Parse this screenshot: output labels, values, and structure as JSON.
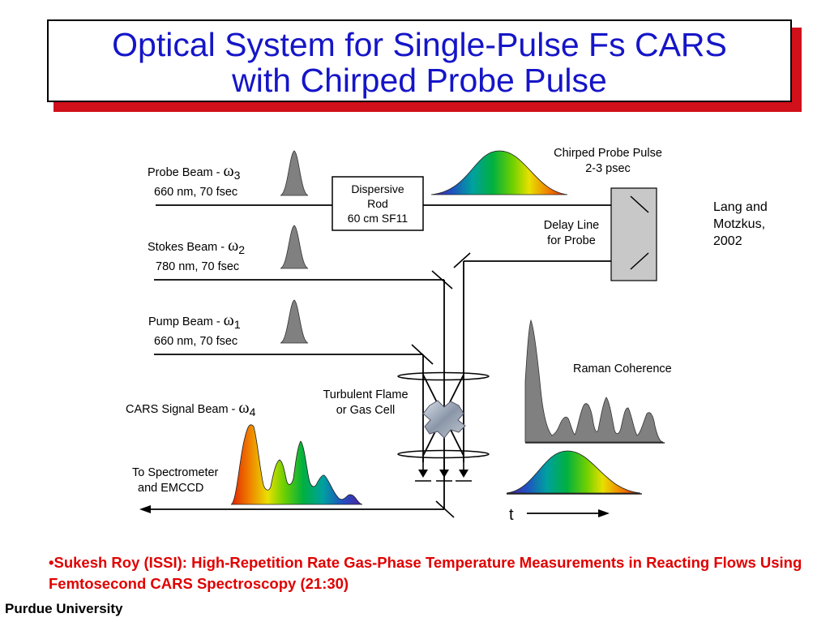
{
  "slide": {
    "title_line1": "Optical System for Single-Pulse Fs CARS",
    "title_line2": "with Chirped Probe Pulse",
    "footer_bullet": "•",
    "footer_text": "Sukesh Roy (ISSI):   High-Repetition Rate Gas-Phase Temperature Measurements in Reacting Flows Using Femtosecond CARS Spectroscopy (21:30)",
    "organization": "Purdue University"
  },
  "diagram": {
    "probe_beam": {
      "label": "Probe Beam - ",
      "symbol": "ω",
      "sub": "3",
      "spec": "660 nm, 70 fsec"
    },
    "stokes_beam": {
      "label": "Stokes Beam - ",
      "symbol": "ω",
      "sub": "2",
      "spec": "780 nm, 70 fsec"
    },
    "pump_beam": {
      "label": "Pump Beam - ",
      "symbol": "ω",
      "sub": "1",
      "spec": "660 nm, 70 fsec"
    },
    "cars_signal": {
      "label": "CARS Signal Beam - ",
      "symbol": "ω",
      "sub": "4"
    },
    "dispersive_rod": {
      "line1": "Dispersive",
      "line2": "Rod",
      "line3": "60 cm SF11"
    },
    "chirped_probe": {
      "line1": "Chirped Probe Pulse",
      "line2": "2-3 psec"
    },
    "delay_line": {
      "line1": "Delay Line",
      "line2": "for Probe"
    },
    "citation": {
      "line1": "Lang and",
      "line2": "Motzkus,",
      "line3": "2002"
    },
    "flame": {
      "line1": "Turbulent Flame",
      "line2": "or Gas Cell"
    },
    "spectrometer": {
      "line1": "To Spectrometer",
      "line2": "and EMCCD"
    },
    "raman": {
      "label": "Raman Coherence"
    },
    "time_axis": {
      "label": "t"
    }
  },
  "colors": {
    "title_text": "#1515c8",
    "title_shadow": "#d0101a",
    "footer_text": "#e00000",
    "pulse_gray": "#808080",
    "delay_box": "#c8c8c8",
    "spectrum_gradient": [
      "#e02000",
      "#f08000",
      "#e8e000",
      "#70d000",
      "#00b040",
      "#00a0a0",
      "#2050c0",
      "#5020a0"
    ]
  }
}
